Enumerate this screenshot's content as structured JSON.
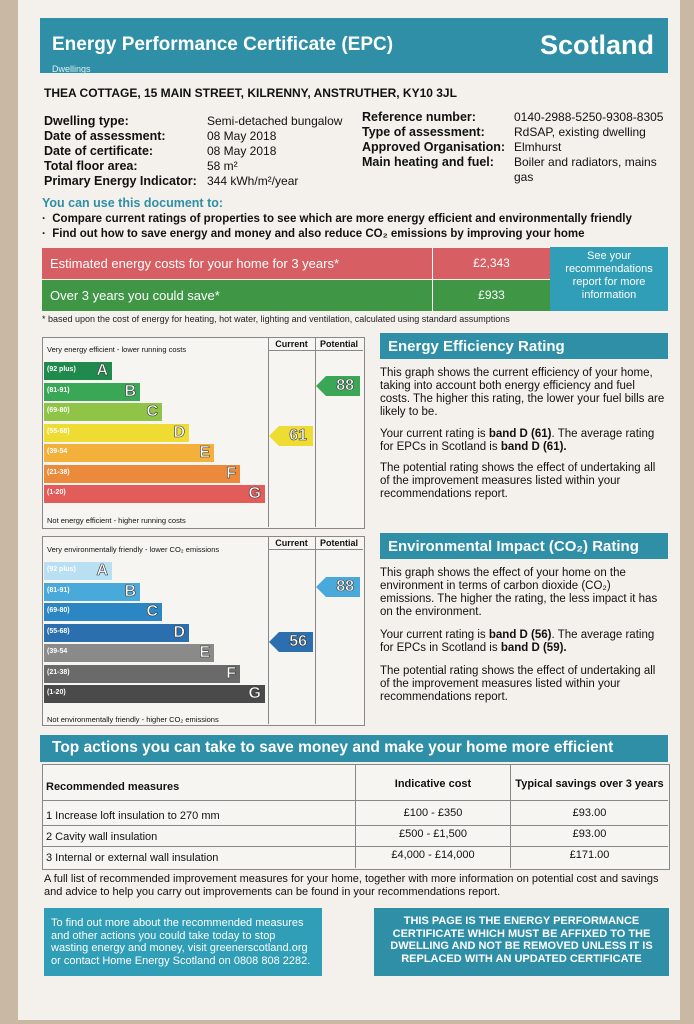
{
  "header": {
    "title": "Energy Performance Certificate (EPC)",
    "subtitle": "Dwellings",
    "region": "Scotland"
  },
  "address": "THEA COTTAGE, 15 MAIN STREET, KILRENNY, ANSTRUTHER, KY10 3JL",
  "details_left": [
    {
      "label": "Dwelling type:",
      "value": "Semi-detached bungalow"
    },
    {
      "label": "Date of assessment:",
      "value": "08 May 2018"
    },
    {
      "label": "Date of certificate:",
      "value": "08 May 2018"
    },
    {
      "label": "Total floor area:",
      "value": "58 m²"
    },
    {
      "label": "Primary Energy Indicator:",
      "value": "344 kWh/m²/year"
    }
  ],
  "details_right": [
    {
      "label": "Reference number:",
      "value": "0140-2988-5250-9308-8305"
    },
    {
      "label": "Type of assessment:",
      "value": "RdSAP, existing dwelling"
    },
    {
      "label": "Approved Organisation:",
      "value": "Elmhurst"
    },
    {
      "label": "Main heating and fuel:",
      "value": "Boiler and radiators, mains"
    },
    {
      "label": "",
      "value": "gas"
    }
  ],
  "use_doc": {
    "heading": "You can use this document to:",
    "bullets": [
      "Compare current ratings of properties to see which are more energy efficient and environmentally friendly",
      "Find out how to save energy and money and also reduce CO₂ emissions by improving your home"
    ]
  },
  "costs": {
    "estimated_label": "Estimated energy costs for your home for 3 years*",
    "estimated_value": "£2,343",
    "save_label": "Over 3 years you could save*",
    "save_value": "£933",
    "see_recs": "See your recommendations report for more information",
    "footnote": "* based upon the cost of energy for heating, hot water, lighting and ventilation, calculated using standard assumptions"
  },
  "col_current": "Current",
  "col_potential": "Potential",
  "energy": {
    "top_label": "Very energy efficient - lower running costs",
    "bottom_label": "Not energy efficient - higher running costs",
    "current": "61",
    "potential": "88",
    "bands": [
      {
        "range": "(92 plus)",
        "letter": "A",
        "color": "#1f8a4c"
      },
      {
        "range": "(81-91)",
        "letter": "B",
        "color": "#3aa757"
      },
      {
        "range": "(69-80)",
        "letter": "C",
        "color": "#8fc446"
      },
      {
        "range": "(55-68)",
        "letter": "D",
        "color": "#eedc32"
      },
      {
        "range": "(39-54",
        "letter": "E",
        "color": "#f3b13c"
      },
      {
        "range": "(21-38)",
        "letter": "F",
        "color": "#ec8a3c"
      },
      {
        "range": "(1-20)",
        "letter": "G",
        "color": "#e25c5a"
      }
    ],
    "heading": "Energy Efficiency Rating",
    "p1": "This graph shows the current efficiency of your home, taking into account both energy efficiency and fuel costs. The higher this rating, the lower your fuel bills are likely to be.",
    "p2_a": "Your current rating is ",
    "p2_b": "band D (61)",
    "p2_c": ". The average rating for EPCs in Scotland is ",
    "p2_d": "band D (61).",
    "p3": "The potential rating shows the effect of undertaking all of the improvement measures listed within your recommendations report."
  },
  "env": {
    "top_label": "Very environmentally friendly - lower CO₂ emissions",
    "bottom_label": "Not environmentally friendly - higher CO₂ emissions",
    "current": "56",
    "potential": "88",
    "bands": [
      {
        "range": "(92 plus)",
        "letter": "A",
        "color": "#b9dff2"
      },
      {
        "range": "(81-91)",
        "letter": "B",
        "color": "#4aa9db"
      },
      {
        "range": "(69-80)",
        "letter": "C",
        "color": "#2d86c4"
      },
      {
        "range": "(55-68)",
        "letter": "D",
        "color": "#2b6fae"
      },
      {
        "range": "(39-54",
        "letter": "E",
        "color": "#8a8a8a"
      },
      {
        "range": "(21-38)",
        "letter": "F",
        "color": "#6a6a6a"
      },
      {
        "range": "(1-20)",
        "letter": "G",
        "color": "#4a4a4a"
      }
    ],
    "heading": "Environmental Impact (CO₂) Rating",
    "p1": "This graph shows the effect of your home on the environment in terms of carbon dioxide (CO₂) emissions. The higher the rating, the less impact it has on the environment.",
    "p2_a": "Your current rating is ",
    "p2_b": "band D (56)",
    "p2_c": ". The average rating for EPCs in Scotland is ",
    "p2_d": "band D (59).",
    "p3": "The potential rating shows the effect of undertaking all of the improvement measures listed within your recommendations report."
  },
  "actions": {
    "heading": "Top actions you can take to save money and make your home more efficient",
    "col_measure": "Recommended measures",
    "col_cost": "Indicative cost",
    "col_savings": "Typical savings over 3 years",
    "rows": [
      {
        "measure": "1 Increase loft insulation to 270 mm",
        "cost": "£100 - £350",
        "savings": "£93.00"
      },
      {
        "measure": "2 Cavity wall insulation",
        "cost": "£500 - £1,500",
        "savings": "£93.00"
      },
      {
        "measure": "3 Internal or external wall insulation",
        "cost": "£4,000 - £14,000",
        "savings": "£171.00"
      }
    ],
    "note": "A full list of recommended improvement measures for your home, together with more information on potential cost and savings and advice to help you carry out improvements can be found in your recommendations report."
  },
  "box_left": "To find out more about the recommended measures and other actions you could take today to stop wasting energy and money, visit greenerscotland.org or contact Home Energy Scotland on 0808 808 2282.",
  "box_right": "THIS PAGE IS THE ENERGY PERFORMANCE CERTIFICATE WHICH MUST BE AFFIXED TO THE DWELLING AND NOT BE REMOVED UNLESS IT IS REPLACED WITH AN UPDATED CERTIFICATE"
}
